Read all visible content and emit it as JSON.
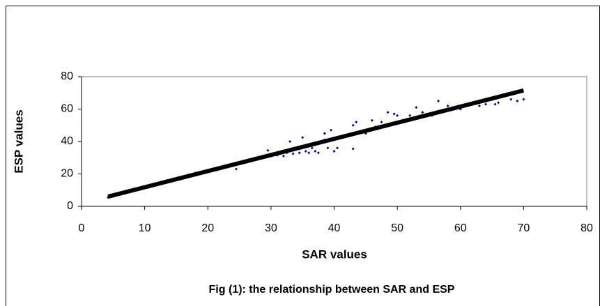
{
  "chart_data": {
    "type": "scatter",
    "xlabel": "SAR values",
    "ylabel": "ESP values",
    "caption": "Fig (1): the relationship between SAR and ESP",
    "xlim": [
      0,
      80
    ],
    "xticks": [
      0,
      10,
      20,
      30,
      40,
      50,
      60,
      70,
      80
    ],
    "ylim": [
      0,
      80
    ],
    "yticks": [
      0,
      20,
      40,
      60,
      80
    ],
    "color": "#000080",
    "trendline_color": "#000000",
    "x": [
      4.2,
      13.5,
      14.5,
      17,
      18,
      19,
      20,
      21.5,
      22,
      24.5,
      24,
      29.5,
      30,
      31,
      32,
      32.5,
      33,
      33,
      33.5,
      34,
      34.5,
      35,
      35.5,
      36,
      36.5,
      37,
      37.5,
      38,
      38.5,
      38.5,
      39,
      39.5,
      40,
      40.5,
      41,
      42,
      43,
      43,
      43.5,
      45,
      46,
      46.5,
      47,
      47.5,
      48,
      48.5,
      49,
      49.5,
      50,
      52,
      53,
      54,
      55.5,
      56,
      56.5,
      58,
      60,
      61,
      62,
      63,
      64,
      65,
      65.5,
      66,
      68,
      69,
      70
    ],
    "y": [
      5.5,
      16,
      17,
      19.5,
      20.5,
      21,
      22,
      22.5,
      23,
      23,
      25,
      34.5,
      31,
      31.5,
      31,
      33,
      35,
      40,
      32.5,
      36,
      33,
      42.5,
      34,
      33,
      36,
      34,
      33,
      40,
      45,
      41,
      36,
      47,
      34,
      36,
      42,
      44,
      35.5,
      50,
      52,
      45,
      53,
      49,
      49,
      52,
      50,
      58,
      51,
      57,
      56,
      56,
      61,
      58,
      56,
      58,
      65,
      62,
      60,
      63,
      64,
      62,
      63,
      67,
      63,
      64,
      66,
      65,
      66
    ],
    "trendline": {
      "x": [
        4.2,
        70
      ],
      "y": [
        6,
        71.5
      ]
    }
  }
}
